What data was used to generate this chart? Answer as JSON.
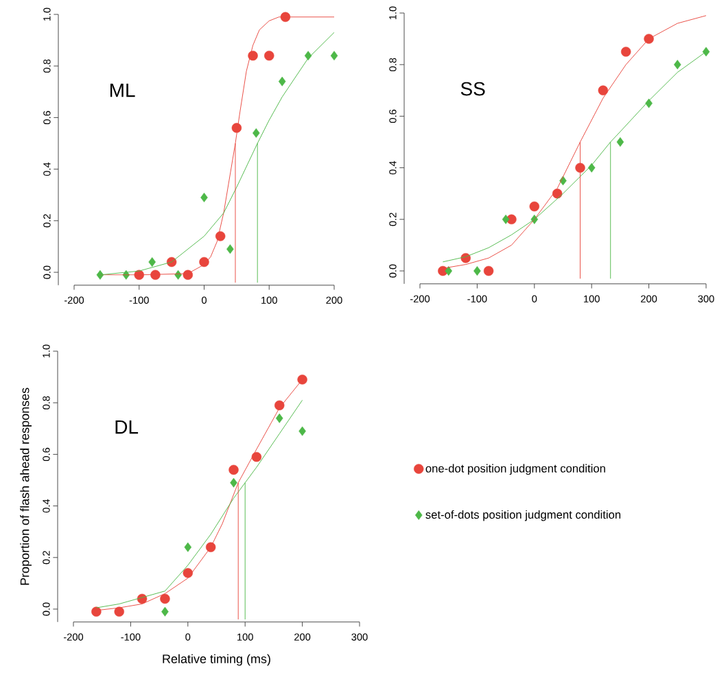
{
  "chart_data": [
    {
      "type": "scatter",
      "annotations": [
        "ML"
      ],
      "xlim": [
        -200,
        200
      ],
      "xticks": [
        -200,
        -100,
        0,
        100,
        200
      ],
      "ylim": [
        -0.05,
        1.0
      ],
      "yticks": [
        {
          "value": 0,
          "label": "0.0"
        },
        {
          "value": 0.2,
          "label": "0.2"
        },
        {
          "value": 0.4,
          "label": "0.4"
        },
        {
          "value": 0.6,
          "label": "0.6"
        },
        {
          "value": 0.8,
          "label": "0.8"
        },
        {
          "value": 1,
          "label": "1.0"
        }
      ],
      "series": [
        {
          "marker": "circle",
          "color": "#e8453c",
          "x": [
            -100,
            -75,
            -50,
            -25,
            0,
            25,
            50,
            75,
            100,
            125
          ],
          "values": [
            -0.01,
            -0.01,
            0.04,
            -0.01,
            0.04,
            0.14,
            0.56,
            0.84,
            0.84,
            0.99
          ]
        },
        {
          "marker": "diamond",
          "color": "#4db848",
          "x": [
            -160,
            -120,
            -80,
            -40,
            0,
            40,
            80,
            120,
            160,
            200
          ],
          "values": [
            -0.01,
            -0.01,
            0.04,
            -0.01,
            0.29,
            0.09,
            0.54,
            0.74,
            0.84,
            0.84
          ]
        },
        {
          "type": "line",
          "line_style": "solid",
          "color": "#e8453c",
          "x": [
            -160,
            -100,
            -25,
            0,
            10,
            20,
            30,
            40,
            48,
            55,
            65,
            75,
            85,
            100,
            115,
            200
          ],
          "values": [
            -0.01,
            -0.01,
            -0.005,
            0.03,
            0.06,
            0.12,
            0.23,
            0.38,
            0.5,
            0.62,
            0.78,
            0.88,
            0.94,
            0.975,
            0.99,
            0.99
          ]
        },
        {
          "type": "line",
          "line_style": "solid",
          "color": "#4db848",
          "x": [
            -160,
            -100,
            -50,
            0,
            30,
            50,
            82,
            100,
            120,
            160,
            200
          ],
          "values": [
            -0.01,
            0.005,
            0.04,
            0.14,
            0.23,
            0.33,
            0.5,
            0.59,
            0.68,
            0.83,
            0.93
          ]
        },
        {
          "type": "line",
          "line_style": "solid",
          "color": "#e8453c",
          "x": [
            48,
            48
          ],
          "values": [
            -0.04,
            0.5
          ]
        },
        {
          "type": "line",
          "line_style": "solid",
          "color": "#4db848",
          "x": [
            82,
            82
          ],
          "values": [
            -0.04,
            0.5
          ]
        }
      ]
    },
    {
      "type": "scatter",
      "annotations": [
        "SS"
      ],
      "xlim": [
        -200,
        300
      ],
      "xticks": [
        -200,
        -100,
        0,
        100,
        200,
        300
      ],
      "ylim": [
        -0.05,
        1.0
      ],
      "yticks": [
        {
          "value": 0,
          "label": "0.0"
        },
        {
          "value": 0.2,
          "label": "0.2"
        },
        {
          "value": 0.4,
          "label": "0.4"
        },
        {
          "value": 0.6,
          "label": "0.6"
        },
        {
          "value": 0.8,
          "label": "0.8"
        },
        {
          "value": 1,
          "label": "1.0"
        }
      ],
      "series": [
        {
          "marker": "circle",
          "color": "#e8453c",
          "x": [
            -160,
            -120,
            -80,
            -40,
            0,
            40,
            80,
            120,
            160,
            200
          ],
          "values": [
            0,
            0.05,
            0,
            0.2,
            0.25,
            0.3,
            0.4,
            0.7,
            0.85,
            0.9
          ]
        },
        {
          "marker": "diamond",
          "color": "#4db848",
          "x": [
            -150,
            -100,
            -50,
            0,
            50,
            100,
            150,
            200,
            250,
            300
          ],
          "values": [
            0,
            0,
            0.2,
            0.2,
            0.35,
            0.4,
            0.5,
            0.65,
            0.8,
            0.85
          ]
        },
        {
          "type": "line",
          "line_style": "solid",
          "color": "#e8453c",
          "x": [
            -160,
            -120,
            -80,
            -40,
            0,
            40,
            80,
            120,
            160,
            200,
            250,
            300
          ],
          "values": [
            0.01,
            0.025,
            0.05,
            0.1,
            0.2,
            0.32,
            0.5,
            0.67,
            0.8,
            0.9,
            0.96,
            0.99
          ]
        },
        {
          "type": "line",
          "line_style": "solid",
          "color": "#4db848",
          "x": [
            -160,
            -120,
            -80,
            -40,
            0,
            50,
            100,
            133,
            150,
            200,
            250,
            300
          ],
          "values": [
            0.035,
            0.055,
            0.09,
            0.14,
            0.2,
            0.3,
            0.41,
            0.5,
            0.54,
            0.66,
            0.77,
            0.85
          ]
        },
        {
          "type": "line",
          "line_style": "solid",
          "color": "#e8453c",
          "x": [
            80,
            80
          ],
          "values": [
            -0.03,
            0.5
          ]
        },
        {
          "type": "line",
          "line_style": "solid",
          "color": "#4db848",
          "x": [
            133,
            133
          ],
          "values": [
            -0.03,
            0.5
          ]
        }
      ]
    },
    {
      "type": "scatter",
      "annotations": [
        "DL"
      ],
      "xlabel": "Relative timing (ms)",
      "ylabel": "Proportion of flash ahead responses",
      "legend": "right",
      "xlim": [
        -200,
        300
      ],
      "xticks": [
        -200,
        -100,
        0,
        100,
        200,
        300
      ],
      "ylim": [
        -0.05,
        1.0
      ],
      "yticks": [
        {
          "value": 0,
          "label": "0.0"
        },
        {
          "value": 0.2,
          "label": "0.2"
        },
        {
          "value": 0.4,
          "label": "0.4"
        },
        {
          "value": 0.6,
          "label": "0.6"
        },
        {
          "value": 0.8,
          "label": "0.8"
        },
        {
          "value": 1,
          "label": "1.0"
        }
      ],
      "series": [
        {
          "name": "one-dot position judgment condition",
          "marker": "circle",
          "color": "#e8453c",
          "x": [
            -160,
            -120,
            -80,
            -40,
            0,
            40,
            80,
            120,
            160,
            200
          ],
          "values": [
            -0.01,
            -0.01,
            0.04,
            0.04,
            0.14,
            0.24,
            0.54,
            0.59,
            0.79,
            0.89
          ]
        },
        {
          "name": "set-of-dots position judgment condition",
          "marker": "diamond",
          "color": "#4db848",
          "x": [
            -40,
            0,
            80,
            160,
            200
          ],
          "values": [
            -0.01,
            0.24,
            0.49,
            0.74,
            0.69
          ]
        },
        {
          "type": "line",
          "line_style": "solid",
          "color": "#e8453c",
          "x": [
            -160,
            -120,
            -80,
            -40,
            0,
            40,
            60,
            88,
            120,
            160,
            200
          ],
          "values": [
            -0.005,
            0.005,
            0.02,
            0.06,
            0.12,
            0.24,
            0.33,
            0.49,
            0.62,
            0.78,
            0.89
          ]
        },
        {
          "type": "line",
          "line_style": "solid",
          "color": "#4db848",
          "x": [
            -160,
            -120,
            -80,
            -40,
            0,
            40,
            80,
            100,
            120,
            160,
            200
          ],
          "values": [
            0.005,
            0.02,
            0.045,
            0.07,
            0.17,
            0.29,
            0.43,
            0.49,
            0.55,
            0.68,
            0.81
          ]
        },
        {
          "type": "line",
          "line_style": "solid",
          "color": "#e8453c",
          "x": [
            88,
            88
          ],
          "values": [
            -0.04,
            0.49
          ]
        },
        {
          "type": "line",
          "line_style": "solid",
          "color": "#4db848",
          "x": [
            100,
            100
          ],
          "values": [
            -0.04,
            0.49
          ]
        }
      ]
    }
  ]
}
